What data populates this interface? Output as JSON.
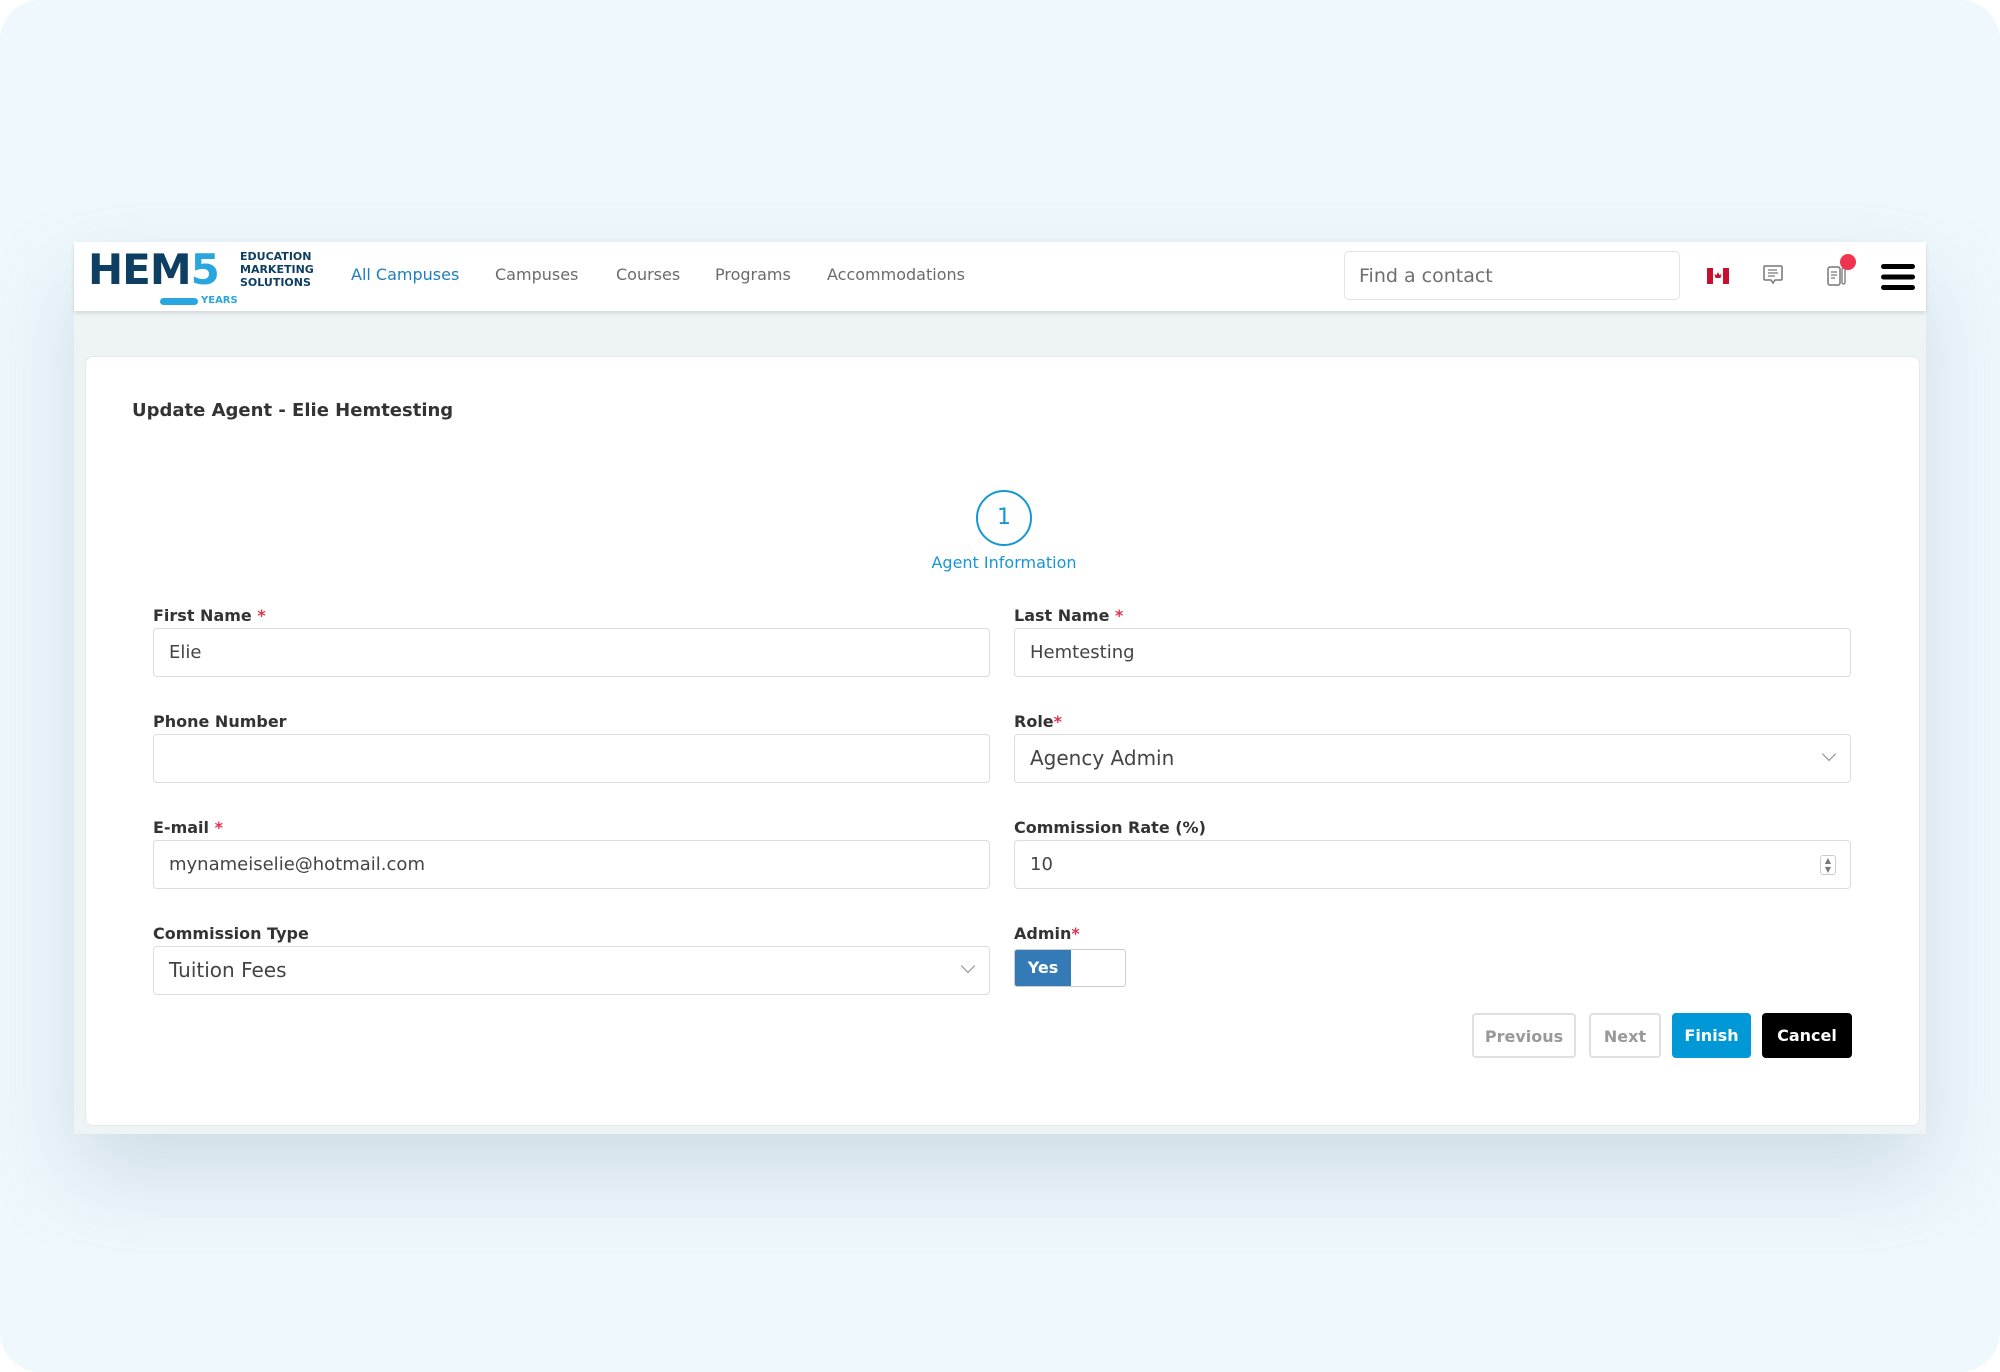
{
  "header": {
    "logo": {
      "main": "HEM",
      "accent": "5",
      "tagline": [
        "EDUCATION",
        "MARKETING",
        "SOLUTIONS"
      ],
      "years": "YEARS"
    },
    "nav": [
      {
        "label": "All Campuses",
        "active": true
      },
      {
        "label": "Campuses"
      },
      {
        "label": "Courses"
      },
      {
        "label": "Programs"
      },
      {
        "label": "Accommodations"
      }
    ],
    "search_placeholder": "Find a contact",
    "icons": [
      "canada-flag-icon",
      "chat-icon",
      "notes-icon",
      "menu-icon"
    ],
    "notification_color": "#f0334f"
  },
  "form": {
    "title": "Update Agent - Elie Hemtesting",
    "step": {
      "number": "1",
      "label": "Agent Information"
    },
    "fields": {
      "first_name": {
        "label": "First Name",
        "value": "Elie"
      },
      "last_name": {
        "label": "Last Name",
        "value": "Hemtesting"
      },
      "phone": {
        "label": "Phone Number",
        "value": ""
      },
      "role": {
        "label": "Role",
        "value": "Agency Admin"
      },
      "email": {
        "label": "E-mail",
        "value": "mynameiselie@hotmail.com"
      },
      "commission_rate": {
        "label": "Commission Rate (%)",
        "value": "10"
      },
      "commission_type": {
        "label": "Commission Type",
        "value": "Tuition Fees"
      },
      "admin": {
        "label": "Admin",
        "value": "Yes"
      }
    },
    "required_mark": "*",
    "buttons": {
      "previous": "Previous",
      "next": "Next",
      "finish": "Finish",
      "cancel": "Cancel"
    },
    "colors": {
      "accent": "#1597d5",
      "finish": "#0098d6",
      "cancel": "#000000",
      "toggle": "#337ab7"
    }
  }
}
